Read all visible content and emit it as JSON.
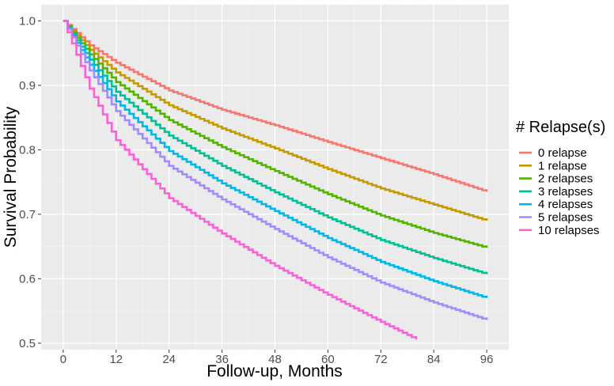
{
  "chart_data": {
    "type": "line",
    "style": "step",
    "title": "",
    "xlabel": "Follow-up, Months",
    "ylabel": "Survival Probability",
    "xlim": [
      -5,
      101
    ],
    "ylim": [
      0.49,
      1.025
    ],
    "x_ticks": [
      0,
      12,
      24,
      36,
      48,
      60,
      72,
      84,
      96
    ],
    "x_tick_labels": [
      "0",
      "12",
      "24",
      "36",
      "48",
      "60",
      "72",
      "84",
      "96"
    ],
    "y_ticks": [
      0.5,
      0.6,
      0.7,
      0.8,
      0.9,
      1.0
    ],
    "y_tick_labels": [
      "0.5",
      "0.6",
      "0.7",
      "0.8",
      "0.9",
      "1.0"
    ],
    "grid": true,
    "legend": {
      "title": "# Relapse(s)",
      "position": "right"
    },
    "series": [
      {
        "name": "0 relapse",
        "color": "#F8766D",
        "x": [
          0,
          6,
          12,
          24,
          36,
          48,
          60,
          72,
          84,
          96
        ],
        "values": [
          1.0,
          0.962,
          0.935,
          0.892,
          0.862,
          0.838,
          0.812,
          0.787,
          0.762,
          0.735
        ]
      },
      {
        "name": "1 relapse",
        "color": "#C49A00",
        "x": [
          0,
          6,
          12,
          24,
          36,
          48,
          60,
          72,
          84,
          96
        ],
        "values": [
          1.0,
          0.955,
          0.92,
          0.869,
          0.833,
          0.802,
          0.77,
          0.74,
          0.715,
          0.69
        ]
      },
      {
        "name": "2 relapses",
        "color": "#53B400",
        "x": [
          0,
          6,
          12,
          24,
          36,
          48,
          60,
          72,
          84,
          96
        ],
        "values": [
          1.0,
          0.948,
          0.905,
          0.846,
          0.804,
          0.767,
          0.731,
          0.698,
          0.671,
          0.648
        ]
      },
      {
        "name": "3 relapses",
        "color": "#00C094",
        "x": [
          0,
          6,
          12,
          24,
          36,
          48,
          60,
          72,
          84,
          96
        ],
        "values": [
          1.0,
          0.94,
          0.89,
          0.822,
          0.775,
          0.734,
          0.695,
          0.66,
          0.632,
          0.607
        ]
      },
      {
        "name": "4 relapses",
        "color": "#00B6EB",
        "x": [
          0,
          6,
          12,
          24,
          36,
          48,
          60,
          72,
          84,
          96
        ],
        "values": [
          1.0,
          0.932,
          0.875,
          0.798,
          0.748,
          0.705,
          0.663,
          0.626,
          0.596,
          0.57
        ]
      },
      {
        "name": "5 relapses",
        "color": "#A58AFF",
        "x": [
          0,
          6,
          12,
          24,
          36,
          48,
          60,
          72,
          84,
          96
        ],
        "values": [
          1.0,
          0.923,
          0.86,
          0.775,
          0.723,
          0.677,
          0.633,
          0.594,
          0.563,
          0.536
        ]
      },
      {
        "name": "10 relapses",
        "color": "#FB61D7",
        "x": [
          0,
          6,
          12,
          24,
          36,
          48,
          60,
          72,
          80
        ],
        "values": [
          1.0,
          0.895,
          0.815,
          0.725,
          0.67,
          0.62,
          0.575,
          0.533,
          0.506
        ]
      }
    ]
  }
}
